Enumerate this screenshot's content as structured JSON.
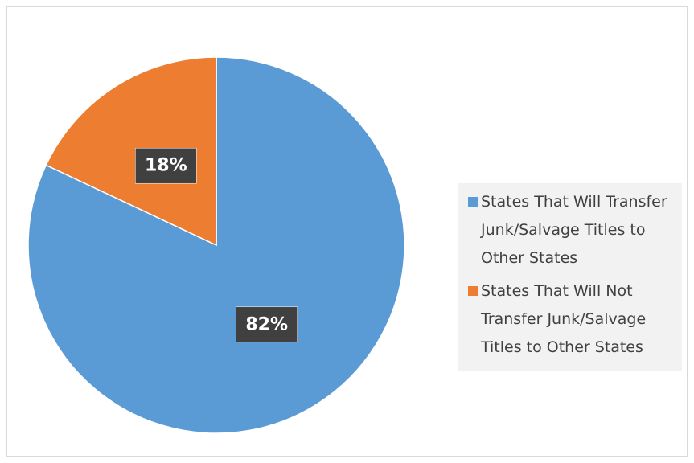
{
  "chart_data": {
    "type": "pie",
    "categories": [
      "States That Will Transfer Junk/Salvage Titles to Other States",
      "States That Will Not Transfer Junk/Salvage Titles to Other States"
    ],
    "values": [
      82,
      18
    ],
    "value_labels": [
      "82%",
      "18%"
    ],
    "colors": [
      "#5b9bd5",
      "#ed7d31"
    ],
    "legend": "right"
  }
}
